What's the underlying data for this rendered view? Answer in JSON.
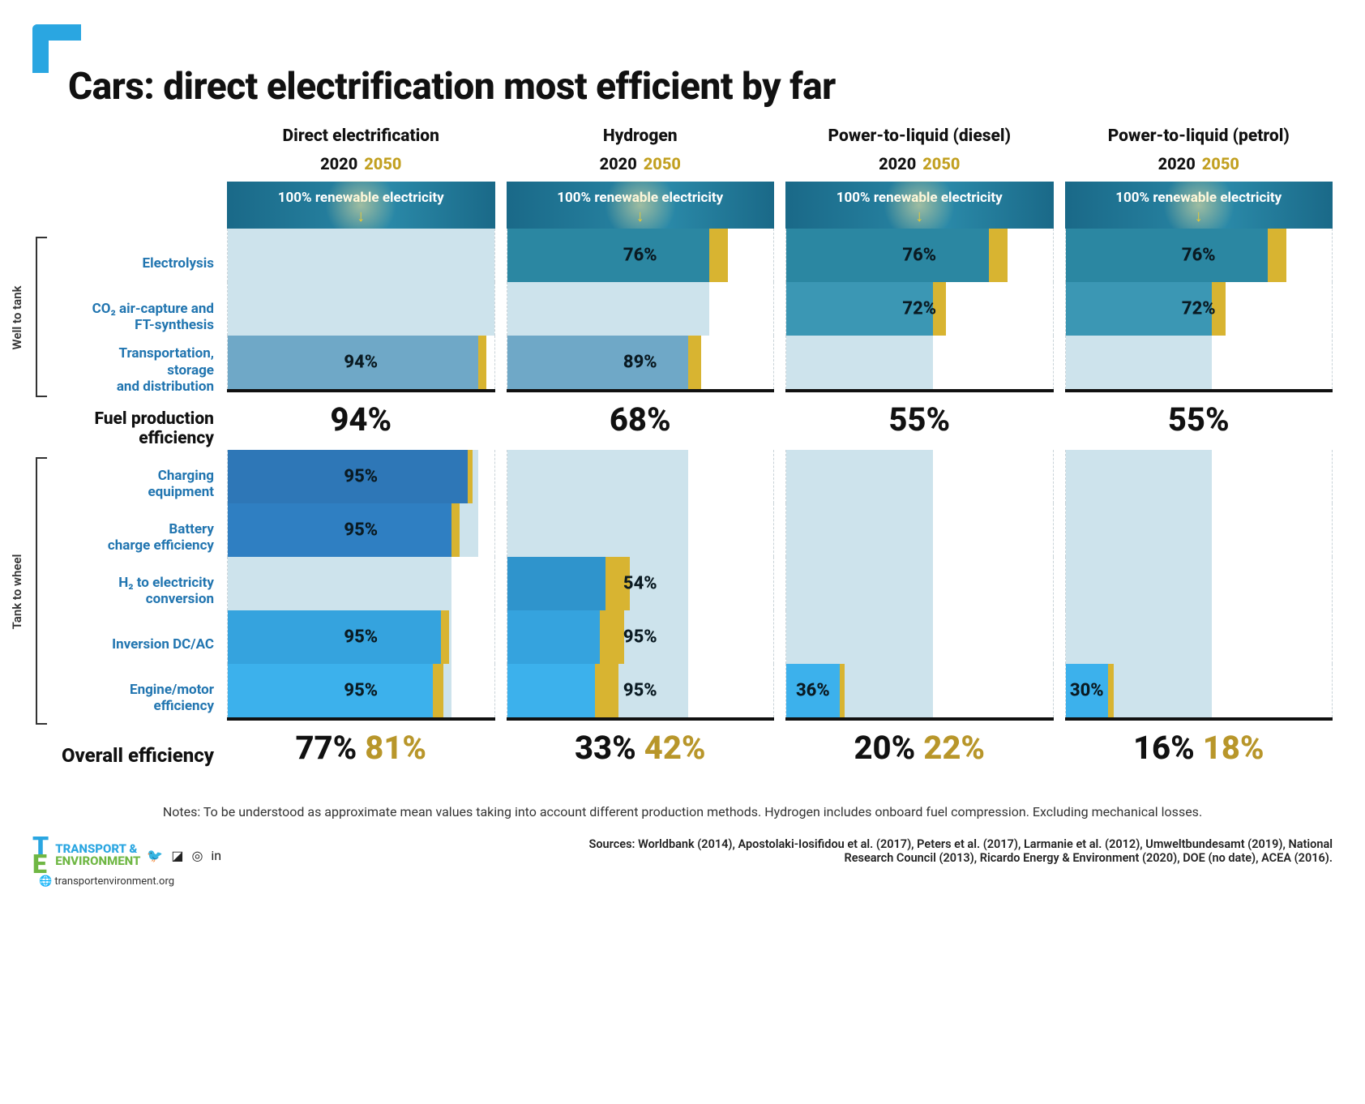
{
  "title": "Cars: direct electrification most efficient by far",
  "years": {
    "y2020": "2020",
    "y2050": "2050"
  },
  "banner_text": "100% renewable electricity",
  "colors": {
    "banner": "#1f7a98",
    "gold": "#d8b431",
    "pale": "#cde3ec",
    "stage_colors": {
      "electrolysis": "#2b87a2",
      "co2_ft": "#3b97b4",
      "transport": "#6fa8c7",
      "charging": "#2e77b7",
      "battery": "#2f7fc2",
      "h2_elec": "#2f94cc",
      "inversion": "#35a3de",
      "engine": "#3cb1ec"
    }
  },
  "row_labels": {
    "electrolysis": "Electrolysis",
    "co2_ft": "CO₂ air-capture and\nFT-synthesis",
    "transport": "Transportation,\nstorage\nand distribution",
    "charging": "Charging\nequipment",
    "battery": "Battery\ncharge efficiency",
    "h2_elec": "H₂ to electricity\nconversion",
    "inversion": "Inversion DC/AC",
    "engine": "Engine/motor\nefficiency",
    "fpe": "Fuel production\nefficiency",
    "overall": "Overall efficiency",
    "bracket_wtt": "Well to tank",
    "bracket_ttw": "Tank to wheel"
  },
  "pathways": [
    {
      "name": "Direct electrification",
      "wtt": {
        "electrolysis": {
          "pass": 100
        },
        "co2_ft": {
          "pass": 100
        },
        "transport": {
          "bar2020": 94,
          "bar2050": 97,
          "label": "94%"
        }
      },
      "fpe": "94%",
      "ttw": {
        "charging": {
          "bar2020": 90,
          "bar2050": 92,
          "label": "95%",
          "cum_in": 94
        },
        "battery": {
          "bar2020": 84,
          "bar2050": 87,
          "label": "95%",
          "cum_in": 94
        },
        "h2_elec": {
          "pass": 84
        },
        "inversion": {
          "bar2020": 80,
          "bar2050": 83,
          "label": "95%",
          "cum_in": 84
        },
        "engine": {
          "bar2020": 77,
          "bar2050": 81,
          "label": "95%",
          "cum_in": 84
        }
      },
      "overall": {
        "y2020": "77%",
        "y2050": "81%"
      }
    },
    {
      "name": "Hydrogen",
      "wtt": {
        "electrolysis": {
          "bar2020": 76,
          "bar2050": 83,
          "label": "76%"
        },
        "co2_ft": {
          "pass": 76
        },
        "transport": {
          "bar2020": 68,
          "bar2050": 73,
          "label": "89%"
        }
      },
      "fpe": "68%",
      "ttw": {
        "charging": {
          "pass": 68
        },
        "battery": {
          "pass": 68
        },
        "h2_elec": {
          "bar2020": 37,
          "bar2050": 46,
          "label": "54%",
          "cum_in": 68
        },
        "inversion": {
          "bar2020": 35,
          "bar2050": 44,
          "label": "95%",
          "cum_in": 68
        },
        "engine": {
          "bar2020": 33,
          "bar2050": 42,
          "label": "95%",
          "cum_in": 68
        }
      },
      "overall": {
        "y2020": "33%",
        "y2050": "42%"
      }
    },
    {
      "name": "Power-to-liquid (diesel)",
      "wtt": {
        "electrolysis": {
          "bar2020": 76,
          "bar2050": 83,
          "label": "76%"
        },
        "co2_ft": {
          "bar2020": 55,
          "bar2050": 60,
          "label": "72%"
        },
        "transport": {
          "pass": 55
        }
      },
      "fpe": "55%",
      "ttw": {
        "charging": {
          "pass": 55
        },
        "battery": {
          "pass": 55
        },
        "h2_elec": {
          "pass": 55
        },
        "inversion": {
          "pass": 55
        },
        "engine": {
          "bar2020": 20,
          "bar2050": 22,
          "label": "36%",
          "cum_in": 55,
          "label_left": true
        }
      },
      "overall": {
        "y2020": "20%",
        "y2050": "22%"
      }
    },
    {
      "name": "Power-to-liquid (petrol)",
      "wtt": {
        "electrolysis": {
          "bar2020": 76,
          "bar2050": 83,
          "label": "76%"
        },
        "co2_ft": {
          "bar2020": 55,
          "bar2050": 60,
          "label": "72%"
        },
        "transport": {
          "pass": 55
        }
      },
      "fpe": "55%",
      "ttw": {
        "charging": {
          "pass": 55
        },
        "battery": {
          "pass": 55
        },
        "h2_elec": {
          "pass": 55
        },
        "inversion": {
          "pass": 55
        },
        "engine": {
          "bar2020": 16,
          "bar2050": 18,
          "label": "30%",
          "cum_in": 55,
          "label_left": true
        }
      },
      "overall": {
        "y2020": "16%",
        "y2050": "18%"
      }
    }
  ],
  "notes": "Notes: To be understood as approximate mean values taking into account different production methods. Hydrogen includes onboard fuel compression. Excluding mechanical losses.",
  "footer": {
    "org1": "TRANSPORT &",
    "org2": "ENVIRONMENT",
    "site": "transportenvironment.org",
    "sources": "Sources: Worldbank (2014), Apostolaki-Iosifidou et al. (2017), Peters et al. (2017), Larmanie et al. (2012), Umweltbundesamt (2019), National Research Council (2013), Ricardo Energy & Environment (2020), DOE (no date), ACEA (2016)."
  }
}
